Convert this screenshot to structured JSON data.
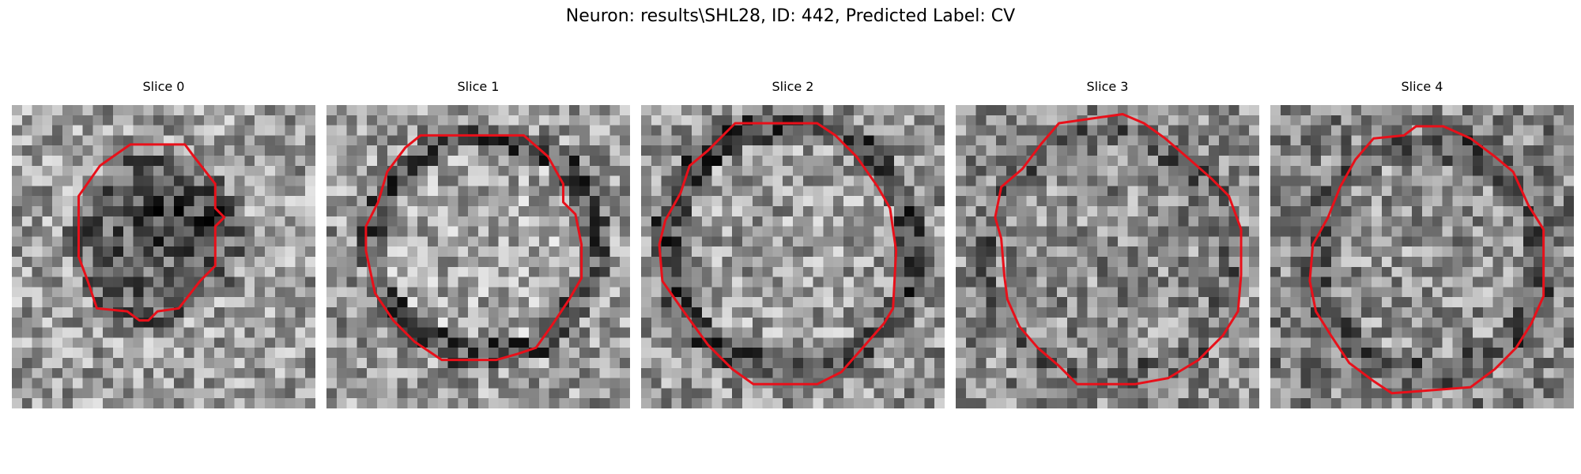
{
  "figure": {
    "title": "Neuron: results\\SHL28, ID: 442, Predicted Label: CV",
    "colormap": "grayscale",
    "contour_color": "#e8101a"
  },
  "panels": [
    {
      "label": "Slice 0"
    },
    {
      "label": "Slice 1"
    },
    {
      "label": "Slice 2"
    },
    {
      "label": "Slice 3"
    },
    {
      "label": "Slice 4"
    }
  ]
}
